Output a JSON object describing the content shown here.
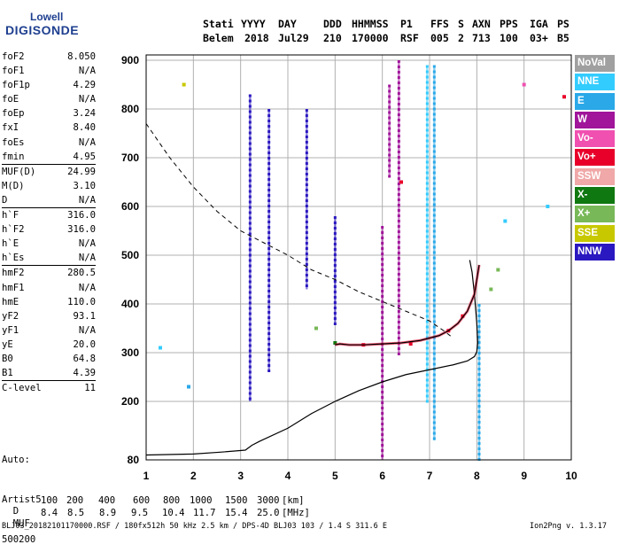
{
  "logo": {
    "line1": "Lowell",
    "line2": "DIGISONDE"
  },
  "header": {
    "labels": [
      "Stati",
      "YYYY",
      "DAY",
      "DDD",
      "HHMMSS",
      "P1",
      "FFS",
      "S",
      "AXN",
      "PPS",
      "IGA",
      "PS"
    ],
    "values": [
      "Belem",
      "2018",
      "Jul29",
      "210",
      "170000",
      "RSF",
      "005",
      "2",
      "713",
      "100",
      "03+",
      "B5"
    ]
  },
  "params": [
    {
      "name": "foF2",
      "value": "8.050"
    },
    {
      "name": "foF1",
      "value": "N/A"
    },
    {
      "name": "foF1p",
      "value": "4.29"
    },
    {
      "name": "foE",
      "value": "N/A"
    },
    {
      "name": "foEp",
      "value": "3.24"
    },
    {
      "name": "fxI",
      "value": "8.40"
    },
    {
      "name": "foEs",
      "value": "N/A"
    },
    {
      "name": "fmin",
      "value": "4.95"
    },
    {
      "name": "MUF(D)",
      "value": "24.99",
      "sep": true
    },
    {
      "name": "M(D)",
      "value": "3.10"
    },
    {
      "name": "D",
      "value": "N/A"
    },
    {
      "name": "h`F",
      "value": "316.0",
      "sep": true
    },
    {
      "name": "h`F2",
      "value": "316.0"
    },
    {
      "name": "h`E",
      "value": "N/A"
    },
    {
      "name": "h`Es",
      "value": "N/A"
    },
    {
      "name": "hmF2",
      "value": "280.5",
      "sep": true
    },
    {
      "name": "hmF1",
      "value": "N/A"
    },
    {
      "name": "hmE",
      "value": "110.0"
    },
    {
      "name": "yF2",
      "value": "93.1"
    },
    {
      "name": "yF1",
      "value": "N/A"
    },
    {
      "name": "yE",
      "value": "20.0"
    },
    {
      "name": "B0",
      "value": "64.8"
    },
    {
      "name": "B1",
      "value": "4.39"
    },
    {
      "name": "C-level",
      "value": "11",
      "sep": true
    }
  ],
  "auto": {
    "line1": "Auto:",
    "line2": "Artist5",
    "line3": "500200"
  },
  "legend": [
    {
      "label": "NoVal",
      "color": "#a0a0a0"
    },
    {
      "label": "NNE",
      "color": "#33ccff"
    },
    {
      "label": "E",
      "color": "#2aa8e8"
    },
    {
      "label": "W",
      "color": "#a0159a"
    },
    {
      "label": "Vo-",
      "color": "#f050b0"
    },
    {
      "label": "Vo+",
      "color": "#e8002a"
    },
    {
      "label": "SSW",
      "color": "#f0a8a8"
    },
    {
      "label": "X-",
      "color": "#107810"
    },
    {
      "label": "X+",
      "color": "#78b858"
    },
    {
      "label": "SSE",
      "color": "#c8c800"
    },
    {
      "label": "NNW",
      "color": "#2a18c0"
    }
  ],
  "bottom": {
    "d_label": "D",
    "d_values": [
      "100",
      "200",
      "400",
      "600",
      "800",
      "1000",
      "1500",
      "3000",
      "[km]"
    ],
    "muf_label": "MUF",
    "muf_values": [
      "8.4",
      "8.5",
      "8.9",
      "9.5",
      "10.4",
      "11.7",
      "15.4",
      "25.0",
      "[MHz]"
    ]
  },
  "footer": {
    "left": "BLJ03_20182101170000.RSF / 180fx512h 50 kHz 2.5 km / DPS-4D BLJ03 103 / 1.4 S 311.6 E",
    "right": "Ion2Png v. 1.3.17"
  },
  "chart_data": {
    "type": "scatter",
    "title": "",
    "xlabel": "",
    "ylabel": "",
    "xlim": [
      1,
      10
    ],
    "ylim": [
      80,
      900
    ],
    "x_ticks": [
      "1",
      "2",
      "3",
      "4",
      "5",
      "6",
      "7",
      "8",
      "9",
      "10"
    ],
    "y_ticks": [
      "80",
      "200",
      "300",
      "400",
      "500",
      "600",
      "700",
      "800",
      "900"
    ],
    "grid": true,
    "trace_F2": {
      "name": "",
      "x": [
        5.0,
        5.1,
        5.3,
        5.6,
        6.0,
        6.4,
        6.8,
        7.2,
        7.4,
        7.6,
        7.8,
        7.95,
        8.05
      ],
      "y": [
        316,
        318,
        316,
        316,
        318,
        320,
        325,
        335,
        345,
        360,
        385,
        420,
        480
      ]
    },
    "profile_curve": {
      "name": "",
      "x": [
        1.0,
        2.0,
        2.6,
        3.1,
        3.24,
        3.4,
        4.0,
        4.5,
        5.0,
        5.5,
        6.0,
        6.5,
        7.0,
        7.5,
        7.8,
        7.95,
        8.0,
        8.02,
        8.0,
        7.95,
        7.9,
        7.85
      ],
      "y": [
        90,
        92,
        96,
        100,
        110,
        118,
        145,
        175,
        200,
        222,
        240,
        255,
        265,
        275,
        283,
        292,
        302,
        320,
        360,
        420,
        465,
        490
      ]
    },
    "muf_dashed": {
      "name": "",
      "x": [
        1.0,
        1.5,
        2.0,
        2.5,
        3.0,
        3.5,
        4.0,
        4.5,
        5.0,
        5.5,
        6.0,
        6.5,
        7.0,
        7.3,
        7.5
      ],
      "y": [
        770,
        700,
        640,
        590,
        550,
        525,
        500,
        470,
        450,
        425,
        405,
        385,
        365,
        345,
        330
      ]
    },
    "echo_columns": [
      {
        "x": 3.2,
        "y0": 200,
        "y1": 830,
        "series": "NNW"
      },
      {
        "x": 3.6,
        "y0": 260,
        "y1": 800,
        "series": "NNW"
      },
      {
        "x": 4.4,
        "y0": 430,
        "y1": 800,
        "series": "NNW"
      },
      {
        "x": 5.0,
        "y0": 360,
        "y1": 580,
        "series": "NNW"
      },
      {
        "x": 6.0,
        "y0": 80,
        "y1": 560,
        "series": "W"
      },
      {
        "x": 6.15,
        "y0": 660,
        "y1": 850,
        "series": "W"
      },
      {
        "x": 6.35,
        "y0": 300,
        "y1": 900,
        "series": "W"
      },
      {
        "x": 6.95,
        "y0": 200,
        "y1": 890,
        "series": "NNE"
      },
      {
        "x": 7.1,
        "y0": 120,
        "y1": 890,
        "series": "E"
      },
      {
        "x": 8.05,
        "y0": 80,
        "y1": 400,
        "series": "E"
      }
    ],
    "echo_points": [
      {
        "x": 5.6,
        "y": 316,
        "series": "Vo+"
      },
      {
        "x": 6.6,
        "y": 318,
        "series": "Vo+"
      },
      {
        "x": 7.4,
        "y": 345,
        "series": "Vo+"
      },
      {
        "x": 7.7,
        "y": 375,
        "series": "Vo+"
      },
      {
        "x": 6.4,
        "y": 650,
        "series": "Vo+"
      },
      {
        "x": 5.0,
        "y": 320,
        "series": "X-"
      },
      {
        "x": 8.3,
        "y": 430,
        "series": "X+"
      },
      {
        "x": 8.45,
        "y": 470,
        "series": "X+"
      },
      {
        "x": 4.6,
        "y": 350,
        "series": "X+"
      },
      {
        "x": 1.8,
        "y": 850,
        "series": "SSE"
      },
      {
        "x": 9.0,
        "y": 850,
        "series": "Vo-"
      },
      {
        "x": 9.85,
        "y": 825,
        "series": "Vo+"
      },
      {
        "x": 8.6,
        "y": 570,
        "series": "NNE"
      },
      {
        "x": 9.5,
        "y": 600,
        "series": "NNE"
      },
      {
        "x": 1.3,
        "y": 310,
        "series": "NNE"
      },
      {
        "x": 1.9,
        "y": 230,
        "series": "E"
      }
    ]
  }
}
